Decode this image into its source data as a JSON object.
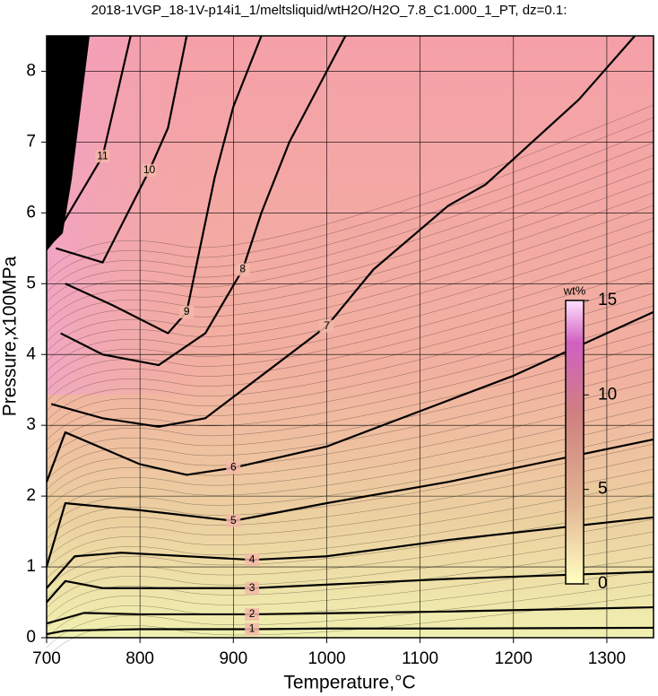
{
  "chart_data": {
    "type": "contour",
    "title": "2018-1VGP_18-1V-p14i1_1/meltsliquid/wtH2O/H2O_7.8_C1.000_1_PT, dz=0.1:",
    "xlabel": "Temperature,°C",
    "ylabel": "Pressure,x100MPa",
    "xlim": [
      700,
      1350
    ],
    "ylim": [
      0,
      8.5
    ],
    "xticks": [
      700,
      800,
      900,
      1000,
      1100,
      1200,
      1300
    ],
    "yticks": [
      0,
      1,
      2,
      3,
      4,
      5,
      6,
      7,
      8
    ],
    "grid": true,
    "colorbar": {
      "label": "wt%",
      "clim": [
        0,
        15
      ],
      "ticks": [
        0,
        5,
        10,
        15
      ]
    },
    "contours": [
      {
        "level": 1,
        "x": [
          700,
          720,
          800,
          920,
          1000,
          1130,
          1350
        ],
        "y": [
          0.05,
          0.1,
          0.12,
          0.12,
          0.13,
          0.13,
          0.14
        ]
      },
      {
        "level": 2,
        "x": [
          700,
          740,
          800,
          920,
          1130,
          1350
        ],
        "y": [
          0.2,
          0.35,
          0.33,
          0.33,
          0.37,
          0.43
        ]
      },
      {
        "level": 3,
        "x": [
          700,
          720,
          760,
          920,
          1130,
          1350
        ],
        "y": [
          0.5,
          0.8,
          0.7,
          0.7,
          0.83,
          0.93
        ]
      },
      {
        "level": 4,
        "x": [
          700,
          730,
          780,
          920,
          1000,
          1130,
          1350
        ],
        "y": [
          0.7,
          1.15,
          1.2,
          1.1,
          1.15,
          1.38,
          1.7
        ]
      },
      {
        "level": 5,
        "x": [
          700,
          720,
          800,
          900,
          1000,
          1130,
          1350
        ],
        "y": [
          1.0,
          1.9,
          1.8,
          1.65,
          1.9,
          2.2,
          2.8
        ]
      },
      {
        "level": 6,
        "x": [
          700,
          720,
          800,
          850,
          900,
          1000,
          1120,
          1200,
          1350
        ],
        "y": [
          2.2,
          2.9,
          2.45,
          2.3,
          2.4,
          2.7,
          3.3,
          3.7,
          4.6
        ]
      },
      {
        "level": 7,
        "x": [
          705,
          760,
          820,
          870,
          920,
          1000,
          1050,
          1130,
          1170,
          1270,
          1330
        ],
        "y": [
          3.3,
          3.1,
          2.98,
          3.1,
          3.6,
          4.4,
          5.2,
          6.1,
          6.4,
          7.6,
          8.5
        ]
      },
      {
        "level": 8,
        "x": [
          715,
          760,
          820,
          870,
          910,
          930,
          960,
          1000,
          1020
        ],
        "y": [
          4.3,
          4.0,
          3.85,
          4.3,
          5.2,
          6.0,
          7.0,
          8.0,
          8.5
        ]
      },
      {
        "level": 9,
        "x": [
          720,
          770,
          830,
          850,
          880,
          900,
          930
        ],
        "y": [
          5.0,
          4.7,
          4.3,
          4.6,
          6.5,
          7.5,
          8.5
        ]
      },
      {
        "level": 10,
        "x": [
          710,
          760,
          810,
          830,
          850
        ],
        "y": [
          5.5,
          5.3,
          6.6,
          7.2,
          8.5
        ]
      },
      {
        "level": 11,
        "x": [
          715,
          760,
          790
        ],
        "y": [
          5.8,
          6.8,
          8.5
        ]
      }
    ]
  }
}
